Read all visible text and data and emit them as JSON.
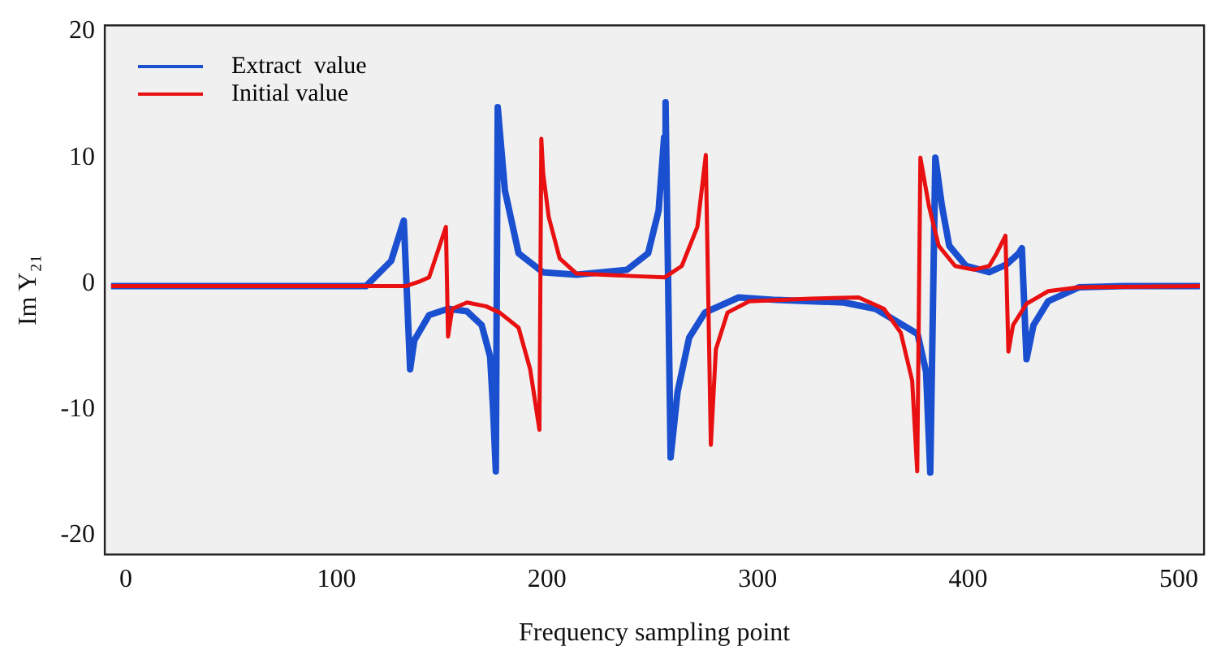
{
  "chart_data": {
    "type": "line",
    "xlabel": "Frequency sampling point",
    "ylabel": "Im Y₂₁",
    "xlim": [
      -10,
      512
    ],
    "ylim": [
      -21.5,
      20.5
    ],
    "xticks": [
      0,
      100,
      200,
      300,
      400,
      500
    ],
    "yticks": [
      -20,
      -10,
      0,
      10,
      20
    ],
    "grid": false,
    "legend": "top left",
    "series": [
      {
        "name": "Extract  value",
        "color": "#1a4fd0",
        "x": [
          -7,
          114,
          126,
          132,
          135,
          137,
          144,
          153,
          162,
          169,
          173,
          174.4,
          175.7,
          176.6,
          180,
          186.5,
          198,
          214,
          238,
          248,
          253,
          255.6,
          256.3,
          258.7,
          262,
          267.5,
          275,
          291,
          309,
          341,
          356,
          376,
          380,
          382,
          384.4,
          387.5,
          391,
          399,
          410,
          418,
          424,
          425.5,
          427.7,
          431,
          438,
          452.5,
          474,
          510
        ],
        "values": [
          -0.2,
          -0.2,
          1.8,
          5,
          -6.8,
          -4.5,
          -2.5,
          -2,
          -2.2,
          -3.3,
          -5.8,
          -10,
          -14.9,
          14,
          7.4,
          2.4,
          0.9,
          0.7,
          1.1,
          2.4,
          5.8,
          11.6,
          14.4,
          -13.8,
          -8.6,
          -4.3,
          -2.3,
          -1.1,
          -1.3,
          -1.5,
          -2,
          -4,
          -7,
          -15,
          10,
          6.2,
          3,
          1.4,
          0.9,
          1.5,
          2.4,
          2.8,
          -6,
          -3.3,
          -1.4,
          -0.3,
          -0.2,
          -0.2
        ]
      },
      {
        "name": "Initial value",
        "color": "#e81010",
        "x": [
          -7,
          133,
          140,
          144,
          152,
          153,
          155,
          162,
          171,
          177.5,
          186.5,
          192,
          196.4,
          197.3,
          198.2,
          200.8,
          206,
          214,
          240.5,
          256,
          264,
          271.4,
          275.4,
          277.8,
          280.2,
          285.7,
          296,
          325,
          348,
          360,
          368,
          373.4,
          375.8,
          377.3,
          381.3,
          386,
          393.8,
          402.8,
          410,
          413.5,
          417.7,
          419.1,
          421.3,
          427.7,
          438,
          452.5,
          510
        ],
        "values": [
          -0.2,
          -0.2,
          0.2,
          0.5,
          4.5,
          -4.2,
          -2,
          -1.5,
          -1.8,
          -2.3,
          -3.5,
          -6.8,
          -11.6,
          11.5,
          8.7,
          5.3,
          2,
          0.8,
          0.6,
          0.5,
          1.4,
          4.5,
          10.2,
          -12.8,
          -5.2,
          -2.3,
          -1.4,
          -1.2,
          -1.1,
          -2,
          -3.9,
          -7.7,
          -14.9,
          10,
          6.2,
          3,
          1.4,
          1.1,
          1.4,
          2.4,
          3.8,
          -5.4,
          -3.3,
          -1.6,
          -0.6,
          -0.3,
          -0.2
        ]
      }
    ]
  }
}
